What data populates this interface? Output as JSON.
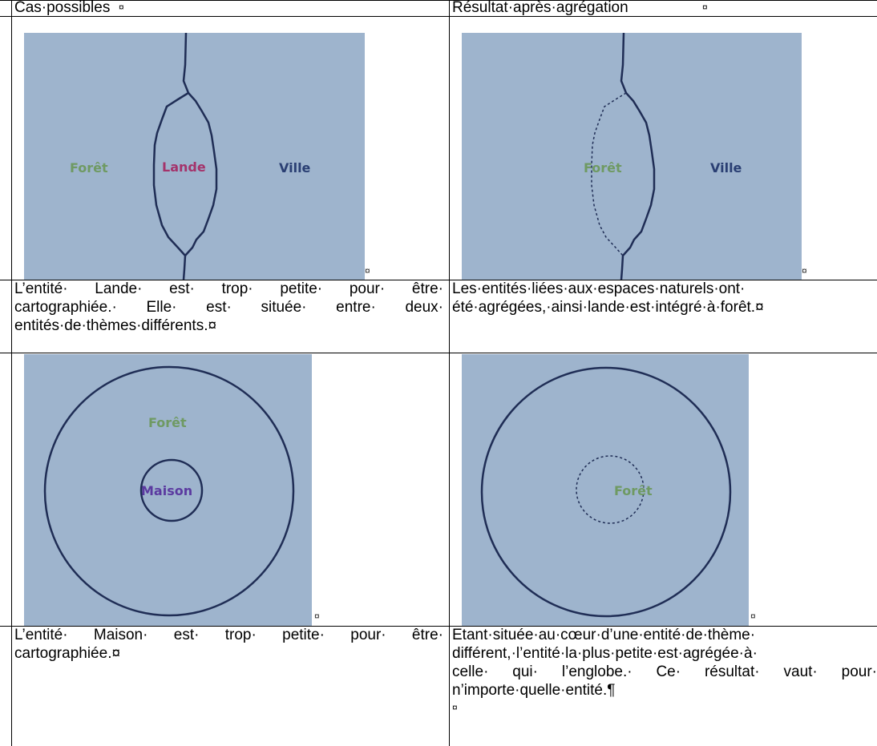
{
  "table": {
    "headers": {
      "left": "Cas·possibles",
      "right": "Résultat·après·agrégation"
    },
    "cell_end_mark": "¤",
    "pilcrow": "¶",
    "rows": [
      {
        "case_figure": {
          "labels": [
            "Forêt",
            "Lande",
            "Ville"
          ]
        },
        "result_figure": {
          "labels": [
            "Forêt",
            "Ville"
          ]
        },
        "case_text": [
          "L’entité· Lande· est· trop· petite· pour· être·",
          "cartographiée.· Elle· est· située· entre· deux·",
          "entités·de·thèmes·différents.¤"
        ],
        "result_text": [
          "Les·entités·liées·aux·espaces·naturels·ont·",
          "été·agrégées,·ainsi·lande·est·intégré·à·forêt.¤"
        ]
      },
      {
        "case_figure": {
          "labels": [
            "Forêt",
            "Maison"
          ]
        },
        "result_figure": {
          "labels": [
            "Forêt"
          ]
        },
        "case_text": [
          "L’entité· Maison· est· trop· petite· pour· être·",
          "cartographiée.¤"
        ],
        "result_text": [
          "Etant·située·au·cœur·d’une·entité·de·thème·",
          "différent,·l’entité·la·plus·petite·est·agrégée·à·",
          "celle· qui· l’englobe.· Ce· résultat· vaut· pour·",
          "n’importe·quelle·entité.¶"
        ]
      }
    ]
  },
  "colors": {
    "figure_bg": "#9eb4cd",
    "boundary": "#1f2d55",
    "foret": "#6f9a63",
    "lande": "#a4336b",
    "ville": "#2a3f73",
    "maison": "#5b3aa0"
  }
}
